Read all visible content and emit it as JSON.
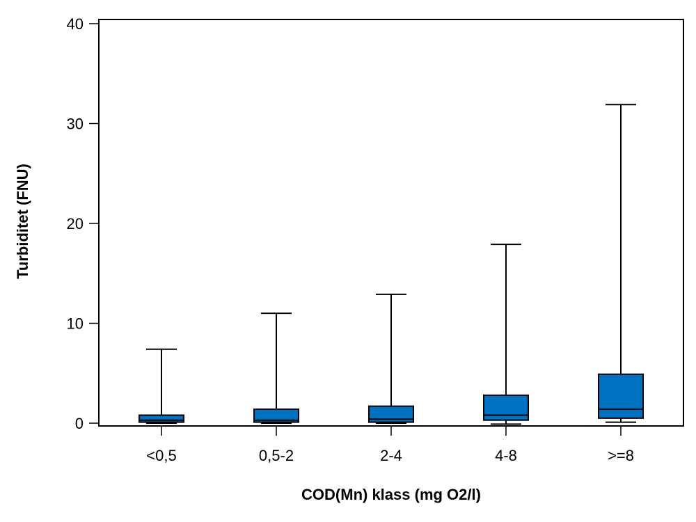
{
  "chart_data": {
    "type": "boxplot",
    "title": "",
    "xlabel": "COD(Mn) klass (mg O2/l)",
    "ylabel": "Turbiditet (FNU)",
    "ylim": [
      0,
      40
    ],
    "yticks": [
      0,
      10,
      20,
      30,
      40
    ],
    "categories": [
      "<0,5",
      "0,5-2",
      "2-4",
      "4-8",
      ">=8"
    ],
    "boxes": [
      {
        "category": "<0,5",
        "whisker_low": 0.0,
        "q1": 0.1,
        "median": 0.3,
        "q3": 0.8,
        "whisker_high": 7.4
      },
      {
        "category": "0,5-2",
        "whisker_low": 0.0,
        "q1": 0.1,
        "median": 0.3,
        "q3": 1.4,
        "whisker_high": 11.0
      },
      {
        "category": "2-4",
        "whisker_low": 0.0,
        "q1": 0.1,
        "median": 0.4,
        "q3": 1.7,
        "whisker_high": 12.9
      },
      {
        "category": "4-8",
        "whisker_low": -0.1,
        "q1": 0.3,
        "median": 0.8,
        "q3": 2.8,
        "whisker_high": 17.9
      },
      {
        "category": ">=8",
        "whisker_low": 0.1,
        "q1": 0.5,
        "median": 1.4,
        "q3": 4.9,
        "whisker_high": 31.9
      }
    ],
    "box_color": "#0070C0",
    "grid": false,
    "legend": "none"
  }
}
